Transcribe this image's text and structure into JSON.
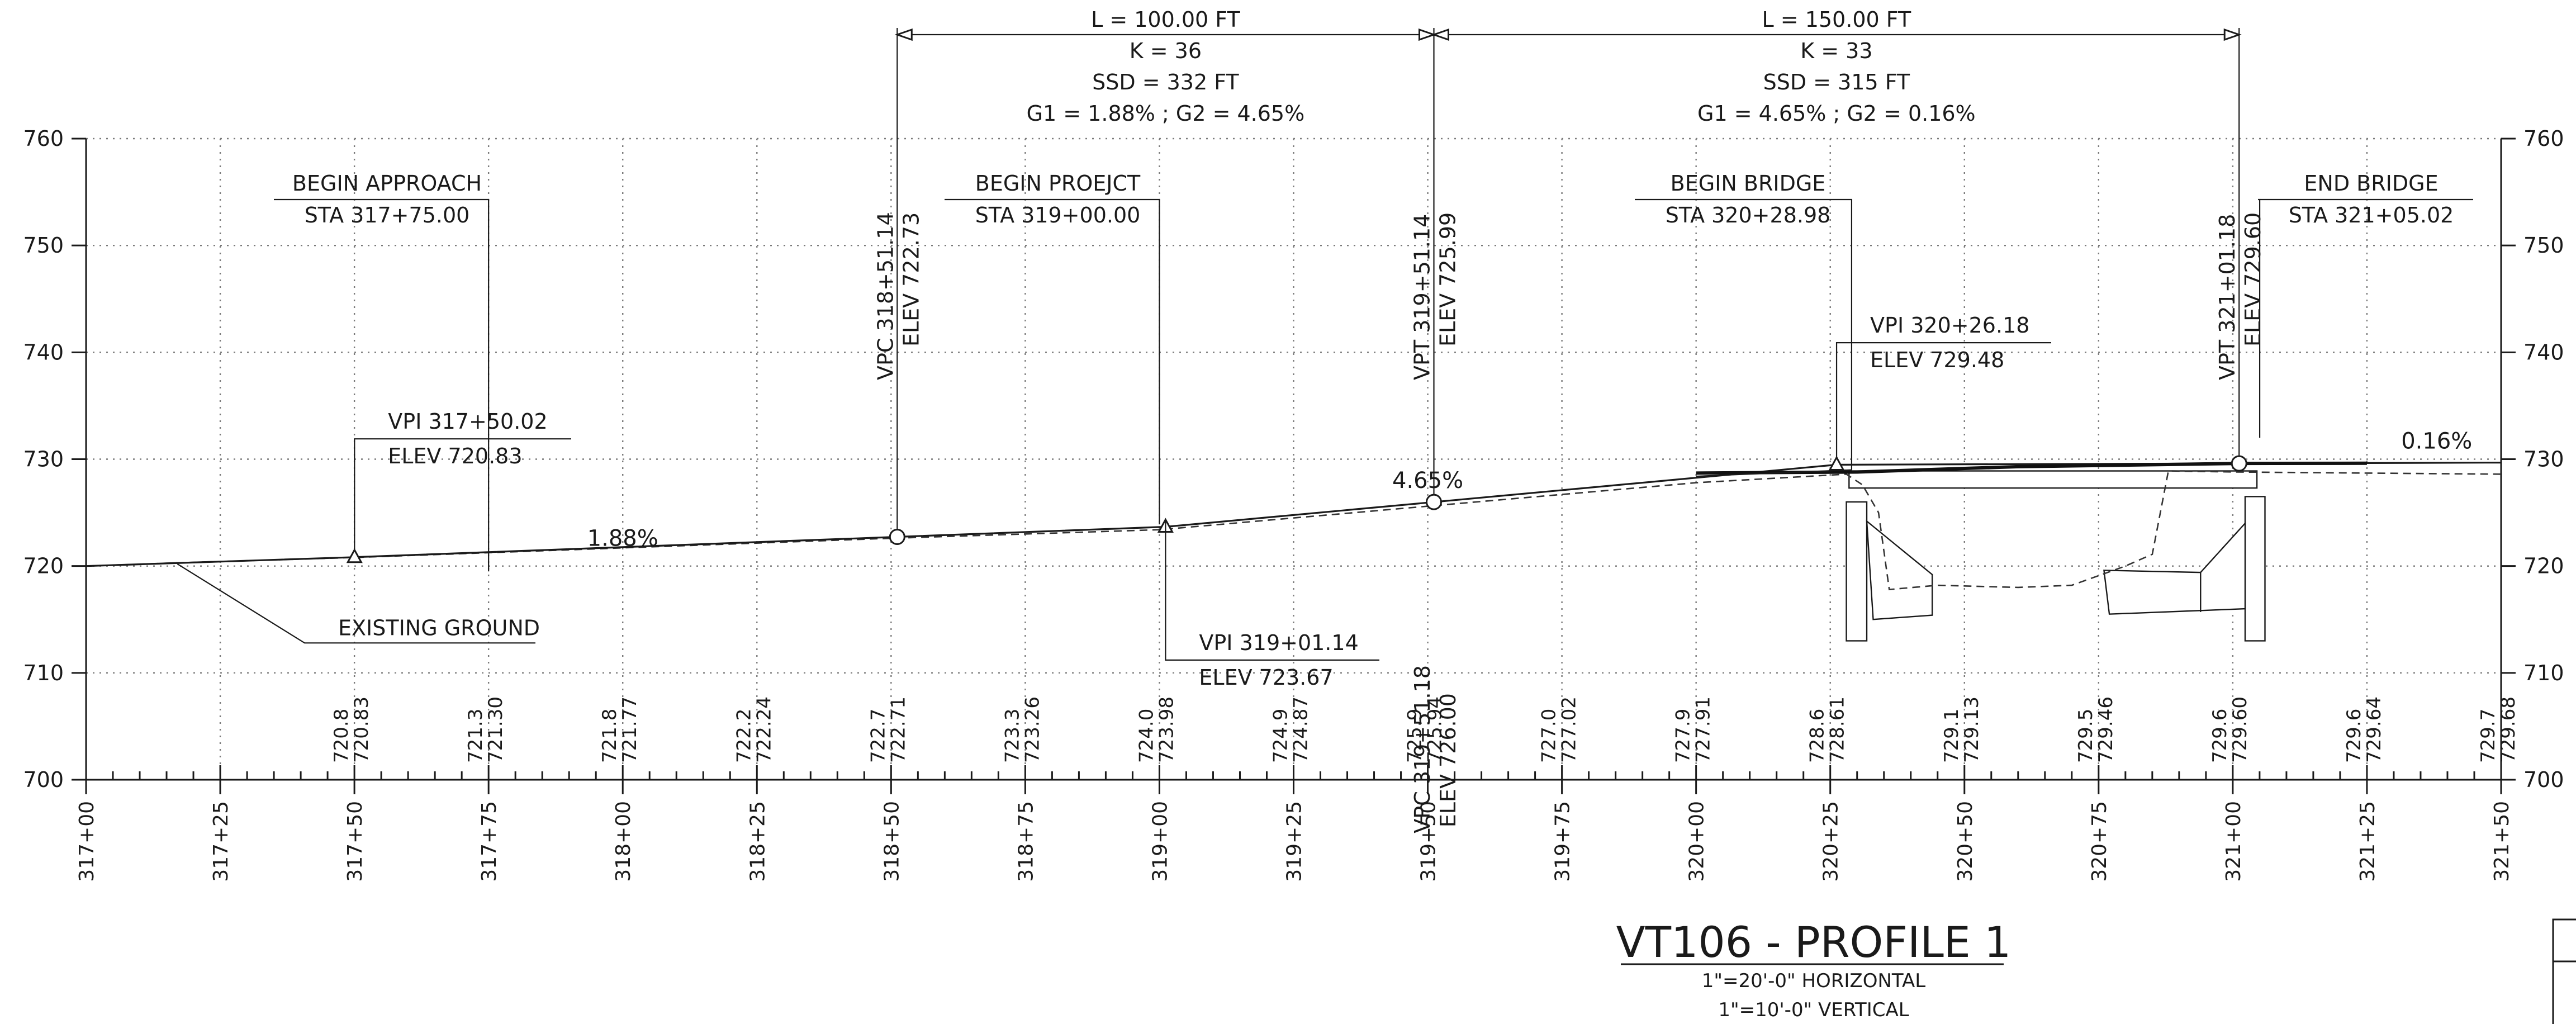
{
  "drawing": {
    "title": "VT106 - PROFILE 1",
    "scale_horizontal": "1\"=20'-0\" HORIZONTAL",
    "scale_vertical": "1\"=10'-0\" VERTICAL"
  },
  "chart_data": {
    "type": "line",
    "x_unit": "station (ft)",
    "xlim": [
      31700,
      32150
    ],
    "ylim": [
      700,
      760
    ],
    "grid": true,
    "x_tick_labels": [
      "317+00",
      "317+25",
      "317+50",
      "317+75",
      "318+00",
      "318+25",
      "318+50",
      "318+75",
      "319+00",
      "319+25",
      "319+50",
      "319+75",
      "320+00",
      "320+25",
      "320+50",
      "320+75",
      "321+00",
      "321+25",
      "321+50"
    ],
    "x_tick_values": [
      31700,
      31725,
      31750,
      31775,
      31800,
      31825,
      31850,
      31875,
      31900,
      31925,
      31950,
      31975,
      32000,
      32025,
      32050,
      32075,
      32100,
      32125,
      32150
    ],
    "y_tick_labels": [
      "700",
      "710",
      "720",
      "730",
      "740",
      "750",
      "760"
    ],
    "y_tick_values": [
      700,
      710,
      720,
      730,
      740,
      750,
      760
    ],
    "proposed_profile": {
      "x": [
        31700,
        31750.02,
        31851.14,
        31901.14,
        31951.14,
        32026.18,
        32101.18,
        32150
      ],
      "y": [
        720.0,
        720.83,
        722.73,
        723.67,
        725.99,
        729.48,
        729.6,
        729.68
      ]
    },
    "existing_ground": {
      "x": [
        31700,
        31717,
        31750,
        31800,
        31850,
        31900,
        31950,
        32000,
        32028,
        32031,
        32034,
        32036,
        32045,
        32060,
        32070,
        32080,
        32085,
        32088,
        32100,
        32125,
        32150
      ],
      "y": [
        720.0,
        720.3,
        720.8,
        721.7,
        722.6,
        723.4,
        725.6,
        727.8,
        728.6,
        727.6,
        725.0,
        717.8,
        718.2,
        718.0,
        718.2,
        720.0,
        721.1,
        728.9,
        728.8,
        728.7,
        728.6
      ]
    },
    "bottom_elevations": [
      {
        "station": 31750,
        "existing": "720.8",
        "proposed": "720.83"
      },
      {
        "station": 31775,
        "existing": "721.3",
        "proposed": "721.30"
      },
      {
        "station": 31800,
        "existing": "721.8",
        "proposed": "721.77"
      },
      {
        "station": 31825,
        "existing": "722.2",
        "proposed": "722.24"
      },
      {
        "station": 31850,
        "existing": "722.7",
        "proposed": "722.71"
      },
      {
        "station": 31875,
        "existing": "723.3",
        "proposed": "723.26"
      },
      {
        "station": 31900,
        "existing": "724.0",
        "proposed": "723.98"
      },
      {
        "station": 31925,
        "existing": "724.9",
        "proposed": "724.87"
      },
      {
        "station": 31950,
        "existing": "725.9",
        "proposed": "725.94"
      },
      {
        "station": 31975,
        "existing": "727.0",
        "proposed": "727.02"
      },
      {
        "station": 32000,
        "existing": "727.9",
        "proposed": "727.91"
      },
      {
        "station": 32025,
        "existing": "728.6",
        "proposed": "728.61"
      },
      {
        "station": 32050,
        "existing": "729.1",
        "proposed": "729.13"
      },
      {
        "station": 32075,
        "existing": "729.5",
        "proposed": "729.46"
      },
      {
        "station": 32100,
        "existing": "729.6",
        "proposed": "729.60"
      },
      {
        "station": 32125,
        "existing": "729.6",
        "proposed": "729.64"
      },
      {
        "station": 32150,
        "existing": "729.7",
        "proposed": "729.68"
      }
    ],
    "grades": [
      {
        "text": "1.88%",
        "station": 31800,
        "elev": 721.9
      },
      {
        "text": "4.65%",
        "station": 31950,
        "elev": 727.3
      },
      {
        "text": "0.16%",
        "station": 32138,
        "elev": 731.0
      }
    ],
    "curve_points": [
      {
        "kind": "vpc",
        "label": "VPC 318+51.14",
        "elev_text": "ELEV 722.73",
        "station": 31851.14,
        "elev": 722.73,
        "label_side": "upper"
      },
      {
        "kind": "vpt",
        "label": "VPT 319+51.14",
        "elev_text": "ELEV 725.99",
        "station": 31951.14,
        "elev": 725.99,
        "label_side": "upper"
      },
      {
        "kind": "vpc",
        "label": "VPC 319+51.18",
        "elev_text": "ELEV 726.00",
        "station": 31951.18,
        "elev": 726.0,
        "label_side": "lower"
      },
      {
        "kind": "vpt",
        "label": "VPT 321+01.18",
        "elev_text": "ELEV 729.60",
        "station": 32101.18,
        "elev": 729.6,
        "label_side": "upper"
      }
    ],
    "vpi_points": [
      {
        "label": "VPI 317+50.02",
        "elev_text": "ELEV 720.83",
        "station": 31750.02,
        "elev": 720.83
      },
      {
        "label": "VPI 319+01.14",
        "elev_text": "ELEV 723.67",
        "station": 31901.14,
        "elev": 723.67
      },
      {
        "label": "VPI 320+26.18",
        "elev_text": "ELEV 729.48",
        "station": 32026.18,
        "elev": 729.48
      }
    ],
    "vertical_curves": [
      {
        "start": 31851.14,
        "end": 31951.14,
        "lines": [
          "L = 100.00 FT",
          "K = 36",
          "SSD = 332 FT",
          "G1 = 1.88% ; G2 = 4.65%"
        ]
      },
      {
        "start": 31951.14,
        "end": 32101.18,
        "lines": [
          "L = 150.00 FT",
          "K = 33",
          "SSD = 315 FT",
          "G1 = 4.65% ; G2 = 0.16%"
        ]
      }
    ],
    "callouts": [
      {
        "id": "begin-approach",
        "title": "BEGIN APPROACH",
        "sta": "STA 317+75.00",
        "station": 31775
      },
      {
        "id": "begin-project",
        "title": "BEGIN PROEJCT",
        "sta": "STA 319+00.00",
        "station": 31900
      },
      {
        "id": "begin-bridge",
        "title": "BEGIN BRIDGE",
        "sta": "STA 320+28.98",
        "station": 32028.98
      },
      {
        "id": "end-bridge",
        "title": "END BRIDGE",
        "sta": "STA 321+05.02",
        "station": 32105.02
      },
      {
        "id": "existing-ground",
        "title": "EXISTING GROUND",
        "station": 31717
      }
    ]
  }
}
